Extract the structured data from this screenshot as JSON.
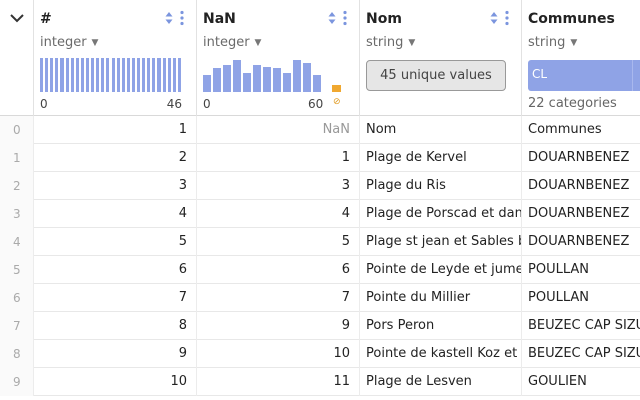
{
  "columns": [
    {
      "name": "#",
      "type": "integer",
      "hist_min": "0",
      "hist_max": "46",
      "histogram": [
        1,
        1,
        1,
        1,
        1,
        1,
        1,
        1,
        1,
        1,
        1,
        1,
        1,
        1,
        1,
        1,
        1,
        1,
        1,
        1,
        1,
        1,
        1,
        1,
        1,
        1,
        1,
        1
      ]
    },
    {
      "name": "NaN",
      "type": "integer",
      "hist_min": "0",
      "hist_max": "60",
      "nan_symbol": "⊘",
      "histogram": [
        0.5,
        0.7,
        0.8,
        0.95,
        0.55,
        0.8,
        0.75,
        0.7,
        0.55,
        0.95,
        0.85,
        0.5
      ]
    },
    {
      "name": "Nom",
      "type": "string",
      "unique_label": "45 unique values"
    },
    {
      "name": "Communes",
      "type": "string",
      "top_category": "CL",
      "categories_label": "22 categories"
    }
  ],
  "rows": [
    {
      "idx": "0",
      "a": "1",
      "b": "NaN",
      "c": "Nom",
      "d": "Communes"
    },
    {
      "idx": "1",
      "a": "2",
      "b": "1",
      "c": "Plage de Kervel",
      "d": "DOUARNBENEZ"
    },
    {
      "idx": "2",
      "a": "3",
      "b": "3",
      "c": "Plage du Ris",
      "d": "DOUARNBENEZ"
    },
    {
      "idx": "3",
      "a": "4",
      "b": "4",
      "c": "Plage de Porscad et dan",
      "d": "DOUARNBENEZ"
    },
    {
      "idx": "4",
      "a": "5",
      "b": "5",
      "c": "Plage st jean et Sables b",
      "d": "DOUARNBENEZ"
    },
    {
      "idx": "5",
      "a": "6",
      "b": "6",
      "c": "Pointe de Leyde et jume",
      "d": "POULLAN"
    },
    {
      "idx": "6",
      "a": "7",
      "b": "7",
      "c": "Pointe du Millier",
      "d": "POULLAN"
    },
    {
      "idx": "7",
      "a": "8",
      "b": "9",
      "c": "Pors Peron",
      "d": "BEUZEC CAP SIZUN"
    },
    {
      "idx": "8",
      "a": "9",
      "b": "10",
      "c": "Pointe de kastell Koz et",
      "d": "BEUZEC CAP SIZUN"
    },
    {
      "idx": "9",
      "a": "10",
      "b": "11",
      "c": "Plage de Lesven",
      "d": "GOULIEN"
    }
  ],
  "colors": {
    "accent": "#8fa3e6",
    "nan": "#f0a830",
    "sort_icon": "#7b95de"
  }
}
